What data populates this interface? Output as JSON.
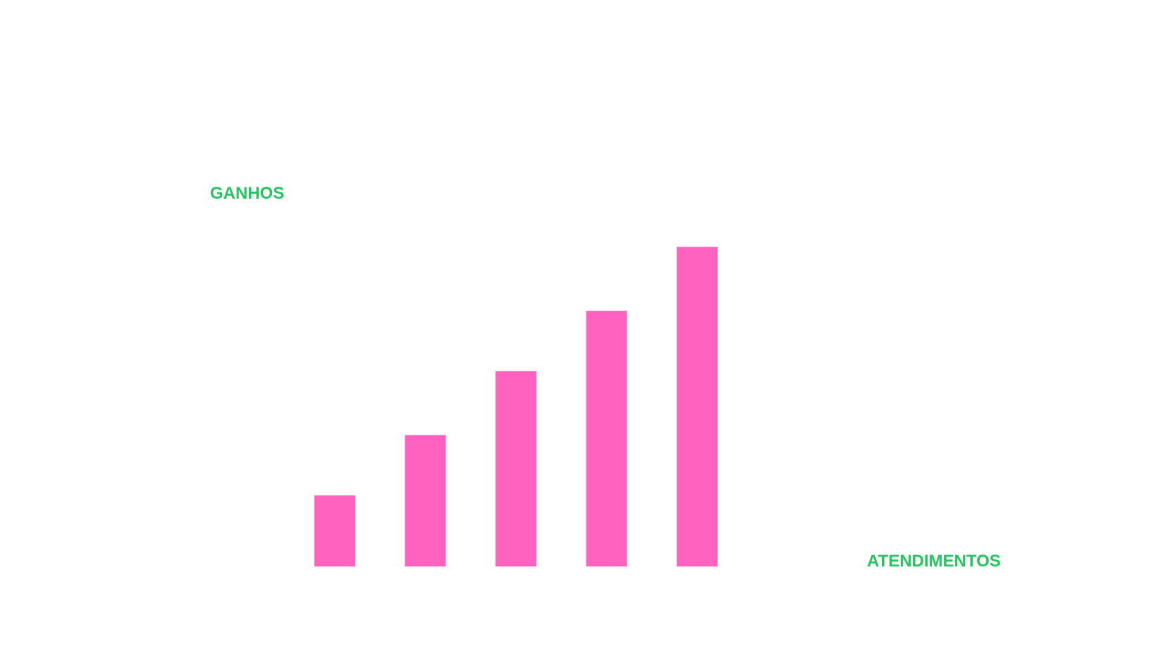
{
  "colors": {
    "bar": "#ff63bf",
    "axis_label": "#22c55e",
    "background": "#ffffff"
  },
  "chart_data": {
    "type": "bar",
    "categories": [
      "",
      "",
      "",
      "",
      ""
    ],
    "values": [
      20,
      37,
      55,
      72,
      90
    ],
    "ylabel": "GANHOS",
    "xlabel": "ATENDIMENTOS",
    "ylim": [
      0,
      100
    ],
    "grid": false,
    "legend": "none"
  }
}
